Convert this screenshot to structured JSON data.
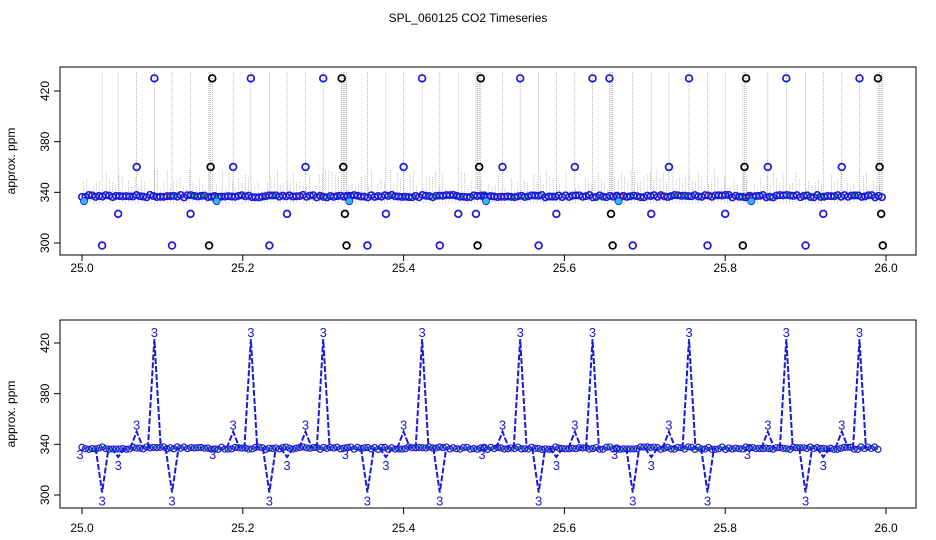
{
  "figure": {
    "title": "SPL_060125  CO2 Timeseries",
    "colors": {
      "black": "#000000",
      "blue": "#1a1adb",
      "cyan": "#33b5ff",
      "green": "#2ecc40",
      "red": "#e0301e",
      "grey": "#9a9a9a"
    }
  },
  "chart_data": [
    {
      "type": "scatter",
      "title": "",
      "xlabel": "",
      "ylabel": "approx. ppm",
      "xlim": [
        25.0,
        26.0
      ],
      "ylim": [
        295,
        435
      ],
      "xticks": [
        "25.0",
        "25.2",
        "25.4",
        "25.6",
        "25.8",
        "26.0"
      ],
      "yticks": [
        "300",
        "340",
        "380",
        "420"
      ],
      "baseline": 337,
      "segments": [
        [
          25.0,
          25.165
        ],
        [
          25.165,
          25.33
        ],
        [
          25.33,
          25.5
        ],
        [
          25.5,
          25.665
        ],
        [
          25.665,
          25.83
        ],
        [
          25.83,
          25.995
        ]
      ],
      "spikes": [
        {
          "x": 25.025,
          "y": 298
        },
        {
          "x": 25.045,
          "y": 323
        },
        {
          "x": 25.068,
          "y": 360
        },
        {
          "x": 25.09,
          "y": 430
        },
        {
          "x": 25.112,
          "y": 298
        },
        {
          "x": 25.135,
          "y": 323
        },
        {
          "x": 25.158,
          "y": 298
        },
        {
          "x": 25.16,
          "y": 360
        },
        {
          "x": 25.162,
          "y": 430
        },
        {
          "x": 25.188,
          "y": 360
        },
        {
          "x": 25.21,
          "y": 430
        },
        {
          "x": 25.233,
          "y": 298
        },
        {
          "x": 25.255,
          "y": 323
        },
        {
          "x": 25.278,
          "y": 360
        },
        {
          "x": 25.3,
          "y": 430
        },
        {
          "x": 25.323,
          "y": 430
        },
        {
          "x": 25.325,
          "y": 360
        },
        {
          "x": 25.327,
          "y": 323
        },
        {
          "x": 25.329,
          "y": 298
        },
        {
          "x": 25.355,
          "y": 298
        },
        {
          "x": 25.378,
          "y": 323
        },
        {
          "x": 25.4,
          "y": 360
        },
        {
          "x": 25.423,
          "y": 430
        },
        {
          "x": 25.445,
          "y": 298
        },
        {
          "x": 25.468,
          "y": 323
        },
        {
          "x": 25.49,
          "y": 323
        },
        {
          "x": 25.492,
          "y": 298
        },
        {
          "x": 25.494,
          "y": 360
        },
        {
          "x": 25.496,
          "y": 430
        },
        {
          "x": 25.523,
          "y": 360
        },
        {
          "x": 25.545,
          "y": 430
        },
        {
          "x": 25.568,
          "y": 298
        },
        {
          "x": 25.59,
          "y": 323
        },
        {
          "x": 25.613,
          "y": 360
        },
        {
          "x": 25.635,
          "y": 430
        },
        {
          "x": 25.656,
          "y": 430
        },
        {
          "x": 25.658,
          "y": 323
        },
        {
          "x": 25.66,
          "y": 298
        },
        {
          "x": 25.685,
          "y": 298
        },
        {
          "x": 25.708,
          "y": 323
        },
        {
          "x": 25.73,
          "y": 360
        },
        {
          "x": 25.755,
          "y": 430
        },
        {
          "x": 25.778,
          "y": 298
        },
        {
          "x": 25.8,
          "y": 323
        },
        {
          "x": 25.822,
          "y": 298
        },
        {
          "x": 25.824,
          "y": 360
        },
        {
          "x": 25.826,
          "y": 430
        },
        {
          "x": 25.853,
          "y": 360
        },
        {
          "x": 25.876,
          "y": 430
        },
        {
          "x": 25.9,
          "y": 298
        },
        {
          "x": 25.922,
          "y": 323
        },
        {
          "x": 25.945,
          "y": 360
        },
        {
          "x": 25.967,
          "y": 430
        },
        {
          "x": 25.99,
          "y": 430
        },
        {
          "x": 25.992,
          "y": 360
        },
        {
          "x": 25.994,
          "y": 323
        },
        {
          "x": 25.996,
          "y": 298
        }
      ]
    },
    {
      "type": "line",
      "title": "",
      "xlabel": "",
      "ylabel": "approx. ppm",
      "xlim": [
        25.0,
        26.0
      ],
      "ylim": [
        295,
        435
      ],
      "xticks": [
        "25.0",
        "25.2",
        "25.4",
        "25.6",
        "25.8",
        "26.0"
      ],
      "yticks": [
        "300",
        "340",
        "380",
        "420"
      ],
      "baseline": 337,
      "point_label": "3",
      "segments": [
        [
          25.0,
          25.165
        ],
        [
          25.165,
          25.33
        ],
        [
          25.33,
          25.5
        ],
        [
          25.5,
          25.665
        ],
        [
          25.665,
          25.83
        ],
        [
          25.83,
          25.99
        ]
      ],
      "spikes": [
        {
          "x": 25.025,
          "y": 302
        },
        {
          "x": 25.045,
          "y": 330
        },
        {
          "x": 25.068,
          "y": 350
        },
        {
          "x": 25.09,
          "y": 423
        },
        {
          "x": 25.112,
          "y": 302
        },
        {
          "x": 25.188,
          "y": 350
        },
        {
          "x": 25.21,
          "y": 423
        },
        {
          "x": 25.233,
          "y": 302
        },
        {
          "x": 25.255,
          "y": 330
        },
        {
          "x": 25.278,
          "y": 350
        },
        {
          "x": 25.3,
          "y": 423
        },
        {
          "x": 25.355,
          "y": 302
        },
        {
          "x": 25.378,
          "y": 330
        },
        {
          "x": 25.4,
          "y": 350
        },
        {
          "x": 25.423,
          "y": 423
        },
        {
          "x": 25.445,
          "y": 302
        },
        {
          "x": 25.523,
          "y": 350
        },
        {
          "x": 25.545,
          "y": 423
        },
        {
          "x": 25.568,
          "y": 302
        },
        {
          "x": 25.59,
          "y": 330
        },
        {
          "x": 25.613,
          "y": 350
        },
        {
          "x": 25.635,
          "y": 423
        },
        {
          "x": 25.685,
          "y": 302
        },
        {
          "x": 25.708,
          "y": 330
        },
        {
          "x": 25.73,
          "y": 350
        },
        {
          "x": 25.755,
          "y": 423
        },
        {
          "x": 25.778,
          "y": 302
        },
        {
          "x": 25.853,
          "y": 350
        },
        {
          "x": 25.876,
          "y": 423
        },
        {
          "x": 25.9,
          "y": 302
        },
        {
          "x": 25.922,
          "y": 330
        },
        {
          "x": 25.945,
          "y": 350
        },
        {
          "x": 25.967,
          "y": 423
        }
      ]
    }
  ]
}
